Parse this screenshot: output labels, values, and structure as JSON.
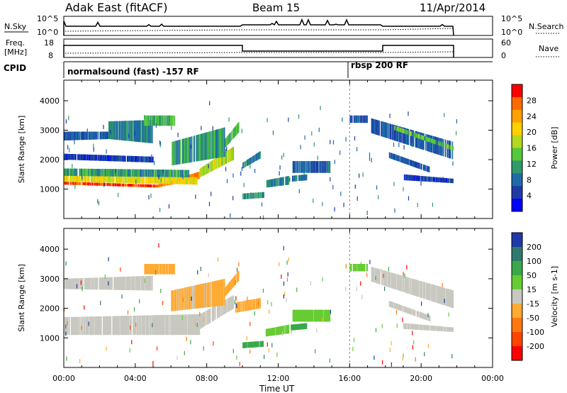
{
  "header": {
    "site": "Adak East (fitACF)",
    "beam": "Beam 15",
    "date": "11/Apr/2014"
  },
  "panels": {
    "nsky": {
      "label": "N.Sky",
      "ticks": [
        "10^5",
        "10^0"
      ]
    },
    "nsearch": {
      "label": "N.Search",
      "ticks": [
        "10^5",
        "10^0"
      ]
    },
    "freq": {
      "label_line1": "Freq.",
      "label_line2": "[MHz]",
      "ticks": [
        "18",
        "8"
      ]
    },
    "nave": {
      "label": "Nave",
      "ticks": [
        "60",
        "0"
      ]
    },
    "cpid": {
      "label": "CPID",
      "programs": [
        {
          "name": "normalsound (fast) -157 RF",
          "start": "00:00",
          "end": "16:00"
        },
        {
          "name": "rbsp 200 RF",
          "start": "16:00",
          "end": "24:00"
        }
      ]
    }
  },
  "chart_data": [
    {
      "type": "heatmap",
      "name": "power",
      "xlabel": "",
      "ylabel": "Slant Range [km]",
      "xlim": [
        "00:00",
        "24:00"
      ],
      "ylim": [
        0,
        4700
      ],
      "yticks": [
        1000,
        2000,
        3000,
        4000
      ],
      "colorbar": {
        "label": "Power [dB]",
        "ticks": [
          "28",
          "24",
          "20",
          "16",
          "12",
          "8",
          "4"
        ],
        "colors": [
          "#ff0000",
          "#ff6a00",
          "#ff9f00",
          "#ffcf00",
          "#b4d81e",
          "#55c83c",
          "#2f9a6a",
          "#1f6aa8",
          "#1e3aa8",
          "#0000ff"
        ]
      },
      "bands": [
        {
          "start_h": 0.0,
          "end_h": 5.2,
          "r0": 1150,
          "r1": 1250,
          "r0_end": 1050,
          "r1_end": 1150,
          "value": 28
        },
        {
          "start_h": 5.2,
          "end_h": 7.6,
          "r0": 1050,
          "r1": 1150,
          "r0_end": 1350,
          "r1_end": 1600,
          "value": 26
        },
        {
          "start_h": 0.0,
          "end_h": 7.5,
          "r0": 1250,
          "r1": 1450,
          "r0_end": 1150,
          "r1_end": 1400,
          "value": 20
        },
        {
          "start_h": 0.0,
          "end_h": 7.0,
          "r0": 1450,
          "r1": 1700,
          "r0_end": 1400,
          "r1_end": 1650,
          "value": 12
        },
        {
          "start_h": 7.6,
          "end_h": 9.5,
          "r0": 1400,
          "r1": 1700,
          "r0_end": 2000,
          "r1_end": 2450,
          "value": 18
        },
        {
          "start_h": 9.0,
          "end_h": 9.8,
          "r0": 2400,
          "r1": 2700,
          "r0_end": 2950,
          "r1_end": 3300,
          "value": 14
        },
        {
          "start_h": 0.0,
          "end_h": 2.5,
          "r0": 2650,
          "r1": 2950,
          "r0_end": 2700,
          "r1_end": 2950,
          "value": 8
        },
        {
          "start_h": 2.5,
          "end_h": 5.0,
          "r0": 2700,
          "r1": 3300,
          "r0_end": 2550,
          "r1_end": 3350,
          "value": 10
        },
        {
          "start_h": 4.5,
          "end_h": 6.2,
          "r0": 3150,
          "r1": 3500,
          "r0_end": 3150,
          "r1_end": 3500,
          "value": 14
        },
        {
          "start_h": 6.0,
          "end_h": 9.0,
          "r0": 1800,
          "r1": 2600,
          "r0_end": 2100,
          "r1_end": 3100,
          "value": 12
        },
        {
          "start_h": 0.0,
          "end_h": 5.0,
          "r0": 2000,
          "r1": 2200,
          "r0_end": 1900,
          "r1_end": 2100,
          "value": 6
        },
        {
          "start_h": 10.0,
          "end_h": 11.0,
          "r0": 1700,
          "r1": 1900,
          "r0_end": 2050,
          "r1_end": 2300,
          "value": 10
        },
        {
          "start_h": 12.8,
          "end_h": 14.9,
          "r0": 1550,
          "r1": 1950,
          "r0_end": 1550,
          "r1_end": 1950,
          "value": 9
        },
        {
          "start_h": 11.3,
          "end_h": 12.6,
          "r0": 1050,
          "r1": 1300,
          "r0_end": 1150,
          "r1_end": 1450,
          "value": 10
        },
        {
          "start_h": 10.0,
          "end_h": 11.2,
          "r0": 650,
          "r1": 850,
          "r0_end": 700,
          "r1_end": 900,
          "value": 10
        },
        {
          "start_h": 12.7,
          "end_h": 13.6,
          "r0": 1250,
          "r1": 1450,
          "r0_end": 1300,
          "r1_end": 1500,
          "value": 9
        },
        {
          "start_h": 16.0,
          "end_h": 17.0,
          "r0": 3250,
          "r1": 3500,
          "r0_end": 3250,
          "r1_end": 3500,
          "value": 8
        },
        {
          "start_h": 17.2,
          "end_h": 21.8,
          "r0": 2900,
          "r1": 3400,
          "r0_end": 2000,
          "r1_end": 2600,
          "value": 8
        },
        {
          "start_h": 18.5,
          "end_h": 21.8,
          "r0": 3000,
          "r1": 3150,
          "r0_end": 2300,
          "r1_end": 2450,
          "value": 15
        },
        {
          "start_h": 19.0,
          "end_h": 21.8,
          "r0": 1300,
          "r1": 1500,
          "r0_end": 1200,
          "r1_end": 1350,
          "value": 6
        },
        {
          "start_h": 18.2,
          "end_h": 20.5,
          "r0": 2050,
          "r1": 2250,
          "r0_end": 1550,
          "r1_end": 1750,
          "value": 8
        }
      ]
    },
    {
      "type": "heatmap",
      "name": "velocity",
      "xlabel": "Time UT",
      "ylabel": "Slant Range [km]",
      "xlim": [
        "00:00",
        "24:00"
      ],
      "xticks": [
        "00:00",
        "04:00",
        "08:00",
        "12:00",
        "16:00",
        "20:00",
        "00:00"
      ],
      "ylim": [
        0,
        4700
      ],
      "yticks": [
        1000,
        2000,
        3000,
        4000
      ],
      "colorbar": {
        "label": "Velocity [m s-1]",
        "ticks": [
          "200",
          "100",
          "50",
          "15",
          "-15",
          "-50",
          "-100",
          "-200"
        ],
        "colors": [
          "#1e3aa8",
          "#2f7a6e",
          "#3aa84a",
          "#66cc33",
          "#c8c8c0",
          "#ffaa33",
          "#ff7711",
          "#ff4400",
          "#ff0000"
        ]
      },
      "bands": [
        {
          "start_h": 0.0,
          "end_h": 7.6,
          "r0": 1100,
          "r1": 1700,
          "r0_end": 1100,
          "r1_end": 1800,
          "value": 0
        },
        {
          "start_h": 7.6,
          "end_h": 9.5,
          "r0": 1300,
          "r1": 1800,
          "r0_end": 2000,
          "r1_end": 2450,
          "value": 0
        },
        {
          "start_h": 0.0,
          "end_h": 5.0,
          "r0": 2650,
          "r1": 3000,
          "r0_end": 2600,
          "r1_end": 3100,
          "value": 0
        },
        {
          "start_h": 4.5,
          "end_h": 6.2,
          "r0": 3150,
          "r1": 3500,
          "r0_end": 3150,
          "r1_end": 3500,
          "value": -40
        },
        {
          "start_h": 6.0,
          "end_h": 9.0,
          "r0": 1900,
          "r1": 2600,
          "r0_end": 2100,
          "r1_end": 3000,
          "value": -20
        },
        {
          "start_h": 9.0,
          "end_h": 9.8,
          "r0": 2400,
          "r1": 2700,
          "r0_end": 2950,
          "r1_end": 3300,
          "value": -30
        },
        {
          "start_h": 9.6,
          "end_h": 11.0,
          "r0": 1850,
          "r1": 2200,
          "r0_end": 2000,
          "r1_end": 2350,
          "value": -35
        },
        {
          "start_h": 12.8,
          "end_h": 14.9,
          "r0": 1550,
          "r1": 1950,
          "r0_end": 1550,
          "r1_end": 1950,
          "value": 30
        },
        {
          "start_h": 11.3,
          "end_h": 12.6,
          "r0": 1050,
          "r1": 1300,
          "r0_end": 1150,
          "r1_end": 1450,
          "value": 40
        },
        {
          "start_h": 10.0,
          "end_h": 11.2,
          "r0": 650,
          "r1": 850,
          "r0_end": 700,
          "r1_end": 900,
          "value": 90
        },
        {
          "start_h": 12.7,
          "end_h": 13.6,
          "r0": 1250,
          "r1": 1450,
          "r0_end": 1300,
          "r1_end": 1500,
          "value": 60
        },
        {
          "start_h": 16.0,
          "end_h": 17.0,
          "r0": 3250,
          "r1": 3500,
          "r0_end": 3250,
          "r1_end": 3500,
          "value": 30
        },
        {
          "start_h": 17.2,
          "end_h": 21.8,
          "r0": 2900,
          "r1": 3400,
          "r0_end": 2000,
          "r1_end": 2600,
          "value": 0
        },
        {
          "start_h": 19.0,
          "end_h": 21.8,
          "r0": 1300,
          "r1": 1500,
          "r0_end": 1200,
          "r1_end": 1350,
          "value": 0
        },
        {
          "start_h": 18.2,
          "end_h": 20.5,
          "r0": 2050,
          "r1": 2250,
          "r0_end": 1550,
          "r1_end": 1750,
          "value": 0
        }
      ]
    }
  ]
}
